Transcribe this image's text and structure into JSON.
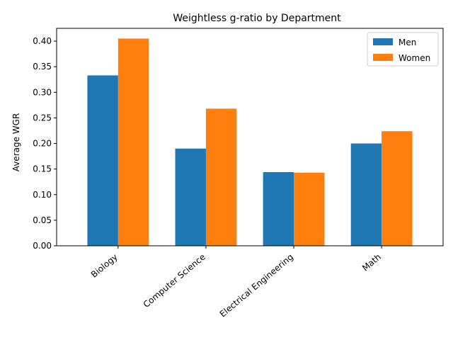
{
  "chart_data": {
    "type": "bar",
    "title": "Weightless g-ratio by Department",
    "xlabel": "",
    "ylabel": "Average WGR",
    "categories": [
      "Biology",
      "Computer Science",
      "Electrical Engineering",
      "Math"
    ],
    "series": [
      {
        "name": "Men",
        "color": "#1f77b4",
        "values": [
          0.333,
          0.19,
          0.144,
          0.2
        ]
      },
      {
        "name": "Women",
        "color": "#ff7f0e",
        "values": [
          0.405,
          0.268,
          0.143,
          0.224
        ]
      }
    ],
    "ylim": [
      0,
      0.425
    ],
    "yticks": [
      "0.00",
      "0.05",
      "0.10",
      "0.15",
      "0.20",
      "0.25",
      "0.30",
      "0.35",
      "0.40"
    ],
    "grid": false,
    "legend_position": "top-right"
  }
}
